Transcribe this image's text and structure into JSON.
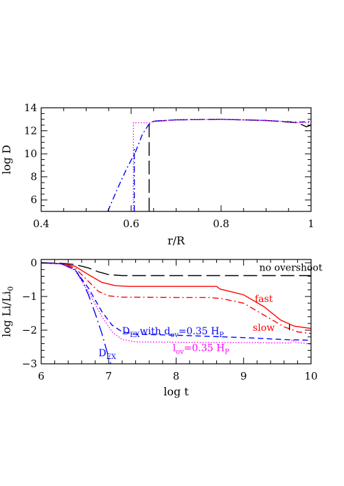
{
  "chart_data": [
    {
      "type": "line",
      "xlabel": "r/R",
      "ylabel": "log D",
      "xlim": [
        0.4,
        1.0
      ],
      "ylim": [
        5,
        14
      ],
      "xticks": [
        0.4,
        0.6,
        0.8,
        1.0
      ],
      "xtick_labels": [
        "0.4",
        "0.6",
        "0.8",
        "1"
      ],
      "yticks": [
        6,
        8,
        10,
        12,
        14
      ],
      "ytick_labels": [
        "6",
        "8",
        "10",
        "12",
        "14"
      ],
      "series": [
        {
          "color": "#000000",
          "dash": "long-dash",
          "points": [
            [
              0.64,
              5
            ],
            [
              0.64,
              12.5
            ],
            [
              0.643,
              12.8
            ],
            [
              0.7,
              12.95
            ],
            [
              0.8,
              13.0
            ],
            [
              0.9,
              12.9
            ],
            [
              0.97,
              12.7
            ],
            [
              0.99,
              12.35
            ],
            [
              1.0,
              12.5
            ]
          ]
        },
        {
          "color": "#0000ff",
          "dash": "dash-dot",
          "points": [
            [
              0.548,
              5
            ],
            [
              0.57,
              7.0
            ],
            [
              0.59,
              8.7
            ],
            [
              0.61,
              10.2
            ],
            [
              0.625,
              11.7
            ],
            [
              0.64,
              12.6
            ],
            [
              0.65,
              12.85
            ],
            [
              0.7,
              12.95
            ],
            [
              0.8,
              13.0
            ],
            [
              0.9,
              12.9
            ],
            [
              0.97,
              12.75
            ],
            [
              1.0,
              12.8
            ]
          ]
        },
        {
          "color": "#ff00ff",
          "dash": "dotted",
          "points": [
            [
              0.605,
              5
            ],
            [
              0.605,
              12.7
            ],
            [
              0.643,
              12.7
            ],
            [
              0.65,
              12.85
            ],
            [
              0.7,
              12.95
            ],
            [
              0.8,
              13.0
            ],
            [
              0.9,
              12.9
            ],
            [
              0.97,
              12.72
            ],
            [
              1.0,
              12.7
            ]
          ]
        },
        {
          "color": "#0000ff",
          "dash": "dash-dot",
          "points": [
            [
              0.607,
              5
            ],
            [
              0.607,
              10.6
            ]
          ]
        }
      ]
    },
    {
      "type": "line",
      "xlabel": "log t",
      "ylabel_main": "log Li/Li",
      "ylabel_sub": "0",
      "xlim": [
        6,
        10
      ],
      "ylim": [
        -3,
        0.1
      ],
      "xticks": [
        6,
        7,
        8,
        9,
        10
      ],
      "xtick_labels": [
        "6",
        "7",
        "8",
        "9",
        "10"
      ],
      "yticks": [
        0,
        -1,
        -2,
        -3
      ],
      "ytick_labels": [
        "0",
        "−1",
        "−2",
        "−3"
      ],
      "series": [
        {
          "color": "#000000",
          "dash": "long-dash",
          "points": [
            [
              6.0,
              0.0
            ],
            [
              6.3,
              -0.01
            ],
            [
              6.5,
              -0.05
            ],
            [
              6.7,
              -0.15
            ],
            [
              6.85,
              -0.27
            ],
            [
              7.0,
              -0.35
            ],
            [
              7.2,
              -0.38
            ],
            [
              8.0,
              -0.38
            ],
            [
              9.0,
              -0.38
            ],
            [
              10.0,
              -0.38
            ]
          ]
        },
        {
          "color": "#ff0000",
          "dash": "solid",
          "points": [
            [
              6.0,
              0.0
            ],
            [
              6.3,
              -0.02
            ],
            [
              6.5,
              -0.1
            ],
            [
              6.7,
              -0.35
            ],
            [
              6.9,
              -0.58
            ],
            [
              7.1,
              -0.68
            ],
            [
              7.3,
              -0.7
            ],
            [
              8.0,
              -0.7
            ],
            [
              8.6,
              -0.7
            ],
            [
              8.65,
              -0.78
            ],
            [
              8.8,
              -0.85
            ],
            [
              9.0,
              -0.95
            ],
            [
              9.3,
              -1.3
            ],
            [
              9.55,
              -1.7
            ],
            [
              9.75,
              -1.88
            ],
            [
              10.0,
              -1.95
            ]
          ]
        },
        {
          "color": "#ff0000",
          "dash": "dash-dot",
          "points": [
            [
              6.0,
              0.0
            ],
            [
              6.3,
              -0.03
            ],
            [
              6.5,
              -0.15
            ],
            [
              6.7,
              -0.55
            ],
            [
              6.85,
              -0.85
            ],
            [
              7.0,
              -0.98
            ],
            [
              7.2,
              -1.02
            ],
            [
              8.0,
              -1.03
            ],
            [
              8.5,
              -1.03
            ],
            [
              8.7,
              -1.07
            ],
            [
              9.0,
              -1.2
            ],
            [
              9.3,
              -1.55
            ],
            [
              9.6,
              -1.9
            ],
            [
              9.8,
              -2.05
            ],
            [
              10.0,
              -2.1
            ]
          ]
        },
        {
          "color": "#0000ff",
          "dash": "dashed",
          "points": [
            [
              6.0,
              0.0
            ],
            [
              6.3,
              -0.03
            ],
            [
              6.5,
              -0.2
            ],
            [
              6.7,
              -0.75
            ],
            [
              6.9,
              -1.45
            ],
            [
              7.05,
              -1.85
            ],
            [
              7.2,
              -2.05
            ],
            [
              7.4,
              -2.12
            ],
            [
              8.0,
              -2.15
            ],
            [
              9.0,
              -2.22
            ],
            [
              9.6,
              -2.28
            ],
            [
              10.0,
              -2.3
            ]
          ]
        },
        {
          "color": "#ff00ff",
          "dash": "dotted",
          "points": [
            [
              6.0,
              0.0
            ],
            [
              6.3,
              -0.03
            ],
            [
              6.5,
              -0.22
            ],
            [
              6.7,
              -0.85
            ],
            [
              6.9,
              -1.6
            ],
            [
              7.05,
              -2.05
            ],
            [
              7.2,
              -2.28
            ],
            [
              7.4,
              -2.35
            ],
            [
              8.0,
              -2.36
            ],
            [
              9.0,
              -2.37
            ],
            [
              9.7,
              -2.38
            ],
            [
              9.72,
              -2.28
            ],
            [
              9.75,
              -2.35
            ],
            [
              10.0,
              -2.42
            ]
          ]
        },
        {
          "color": "#0000ff",
          "dash": "long-dash-dot",
          "points": [
            [
              6.0,
              0.0
            ],
            [
              6.3,
              -0.03
            ],
            [
              6.5,
              -0.2
            ],
            [
              6.6,
              -0.5
            ],
            [
              6.7,
              -0.95
            ],
            [
              6.8,
              -1.5
            ],
            [
              6.9,
              -2.1
            ],
            [
              6.97,
              -2.6
            ],
            [
              7.03,
              -3.0
            ]
          ]
        },
        {
          "color": "#000000",
          "dash": "solid",
          "points": [
            [
              9.68,
              -1.83
            ],
            [
              9.68,
              -2.0
            ]
          ]
        }
      ],
      "annotations": [
        {
          "text": "no overshoot",
          "color": "#000000",
          "x": 9.7,
          "y": -0.24,
          "anchor": "middle"
        },
        {
          "text": "fast",
          "color": "#ff0000",
          "x": 9.3,
          "y": -1.16,
          "anchor": "middle"
        },
        {
          "text": "slow",
          "color": "#ff0000",
          "x": 9.3,
          "y": -2.02,
          "anchor": "middle"
        },
        {
          "text": "D",
          "sub": "EX",
          "color": "#0000ff",
          "x": 6.85,
          "y": -2.78,
          "anchor": "start"
        },
        {
          "text": "D",
          "sub": "EX",
          "mid": "with d",
          "sub2": "ov",
          "tail": "=0.35 H",
          "sub3": "P",
          "color": "#0000ff",
          "x": 7.2,
          "y": -2.12,
          "anchor": "start"
        },
        {
          "text": "l",
          "sub": "ov",
          "tail": "=0.35  H",
          "sub3": "P",
          "color": "#ff00ff",
          "x": 7.95,
          "y": -2.62,
          "anchor": "start"
        }
      ]
    }
  ]
}
